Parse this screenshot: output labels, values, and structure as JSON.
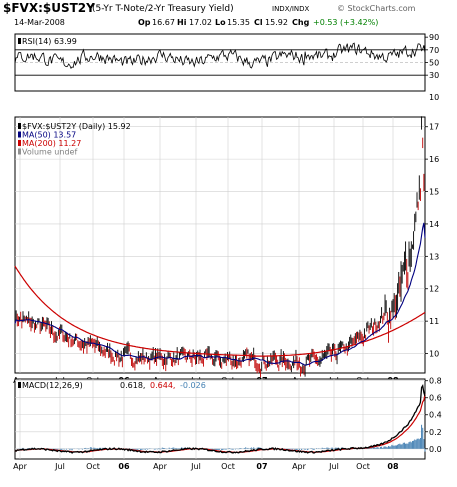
{
  "header": {
    "symbol": "$FVX:$UST2Y",
    "description": "(5-Yr T-Note/2-Yr Treasury Yield)",
    "exchange": "INDX/INDX",
    "watermark": "© StockCharts.com",
    "date": "14-Mar-2008",
    "stats": [
      {
        "label": "Op",
        "value": "16.67"
      },
      {
        "label": "Hi",
        "value": "17.02"
      },
      {
        "label": "Lo",
        "value": "15.35"
      },
      {
        "label": "Cl",
        "value": "15.92"
      },
      {
        "label": "Chg",
        "value": "+0.53 (+3.42%)"
      }
    ],
    "change_color": "#008000"
  },
  "chart_data": [
    {
      "type": "line",
      "panel": "RSI",
      "legend": "RSI(14) 63.99",
      "ylim": [
        30,
        90
      ],
      "yticks": [
        "90",
        "70",
        "50",
        "30"
      ],
      "yticks_minor": [
        "10"
      ],
      "guide_lines": [
        70,
        50,
        30
      ],
      "last_value": 63.99
    },
    {
      "type": "line",
      "panel": "price",
      "legend": [
        {
          "text": "$FVX:$UST2Y (Daily) 15.92",
          "color": "#000000",
          "marker": "#000000"
        },
        {
          "text": "MA(50) 13.57",
          "color": "#000080",
          "marker": "#000080"
        },
        {
          "text": "MA(200) 11.27",
          "color": "#cc0000",
          "marker": "#cc0000"
        },
        {
          "text": "Volume undef",
          "color": "#808080",
          "marker": "#909090"
        }
      ],
      "ylim": [
        9.4,
        17.3
      ],
      "yticks": [
        "17",
        "16",
        "15",
        "14",
        "13",
        "12",
        "11",
        "10"
      ],
      "x_axis_labels": [
        "Apr",
        "Jul",
        "Oct",
        "06",
        "Apr",
        "Jul",
        "Oct",
        "07",
        "Apr",
        "Jul",
        "Oct",
        "08"
      ],
      "bold_labels": [
        "06",
        "07",
        "08"
      ],
      "series": [
        {
          "name": "MA(50)",
          "color": "#000080",
          "last_value": 13.57
        },
        {
          "name": "MA(200)",
          "color": "#cc0000",
          "last_value": 11.27
        }
      ],
      "close": 15.92,
      "high": 17.02,
      "low": 15.35
    },
    {
      "type": "line",
      "panel": "MACD",
      "legend": [
        {
          "text": "MACD(12,26,9)",
          "color": "#000000"
        },
        {
          "text": "0.618,",
          "color": "#000000"
        },
        {
          "text": "0.644,",
          "color": "#cc0000"
        },
        {
          "text": "-0.026",
          "color": "#4682b4"
        }
      ],
      "ylim": [
        -0.12,
        0.82
      ],
      "yticks": [
        "0.8",
        "0.6",
        "0.4",
        "0.2",
        "0.0"
      ],
      "x_axis_labels": [
        "Apr",
        "Jul",
        "Oct",
        "06",
        "Apr",
        "Jul",
        "Oct",
        "07",
        "Apr",
        "Jul",
        "Oct",
        "08"
      ],
      "series": [
        {
          "name": "MACD",
          "color": "#000000",
          "last_value": 0.618
        },
        {
          "name": "Signal",
          "color": "#cc0000",
          "last_value": 0.644
        },
        {
          "name": "Histogram",
          "color": "#4682b4",
          "last_value": -0.026
        }
      ]
    }
  ]
}
